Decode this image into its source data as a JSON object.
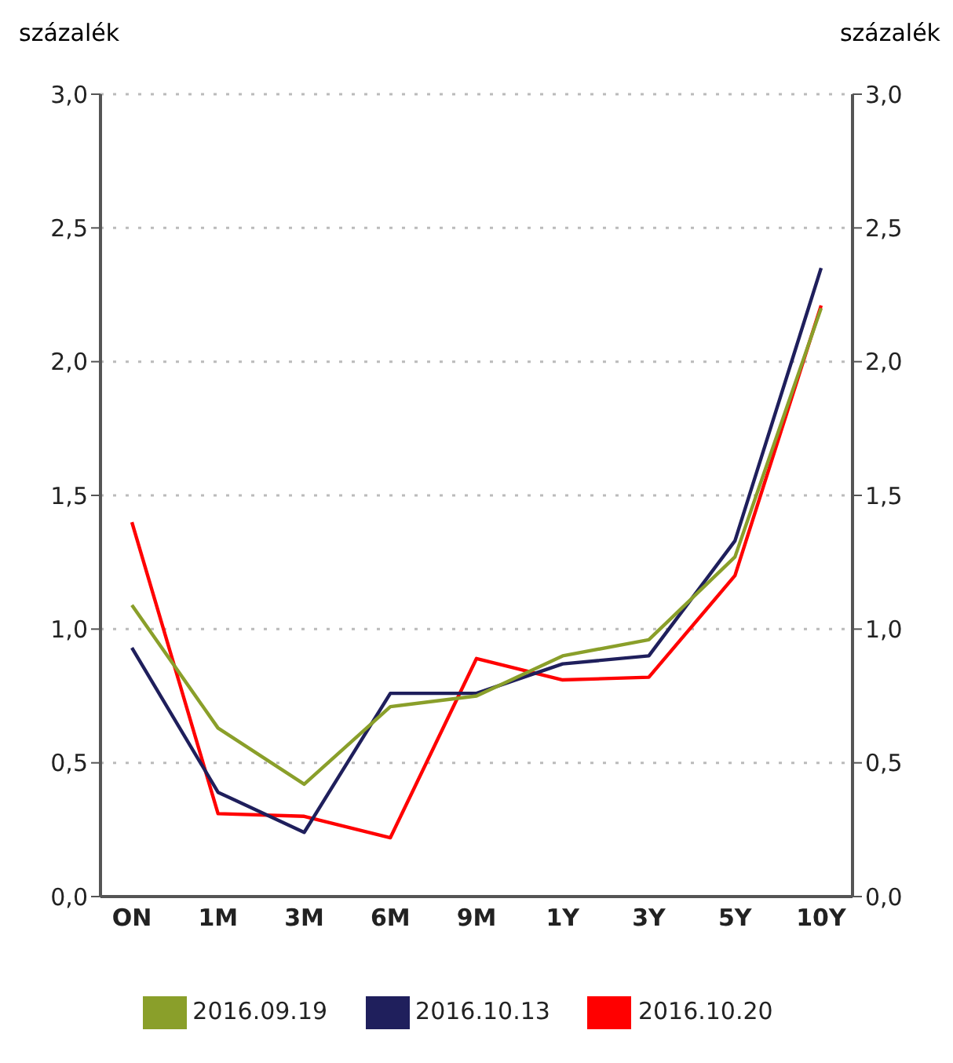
{
  "chart_data": {
    "type": "line",
    "ylabel": "százalék",
    "y2label": "százalék",
    "categories": [
      "ON",
      "1M",
      "3M",
      "6M",
      "9M",
      "1Y",
      "3Y",
      "5Y",
      "10Y"
    ],
    "series": [
      {
        "name": "2016.10.20",
        "color": "#ff0000",
        "values": [
          1.4,
          0.31,
          0.3,
          0.22,
          0.89,
          0.81,
          0.82,
          1.2,
          2.21
        ]
      },
      {
        "name": "2016.10.13",
        "color": "#1f1f5c",
        "values": [
          0.93,
          0.39,
          0.24,
          0.76,
          0.76,
          0.87,
          0.9,
          1.33,
          2.35
        ]
      },
      {
        "name": "2016.09.19",
        "color": "#8a9f2a",
        "values": [
          1.09,
          0.63,
          0.42,
          0.71,
          0.75,
          0.9,
          0.96,
          1.27,
          2.2
        ]
      }
    ],
    "ylim": [
      0,
      3
    ],
    "yticks": [
      {
        "value": 0,
        "label": "0,0"
      },
      {
        "value": 0.5,
        "label": "0,5"
      },
      {
        "value": 1,
        "label": "1,0"
      },
      {
        "value": 1.5,
        "label": "1,5"
      },
      {
        "value": 2,
        "label": "2,0"
      },
      {
        "value": 2.5,
        "label": "2,5"
      },
      {
        "value": 3,
        "label": "3,0"
      }
    ],
    "y2lim": [
      0,
      3
    ],
    "y2ticks": [
      {
        "value": 0,
        "label": "0,0"
      },
      {
        "value": 0.5,
        "label": "0,5"
      },
      {
        "value": 1,
        "label": "1,0"
      },
      {
        "value": 1.5,
        "label": "1,5"
      },
      {
        "value": 2,
        "label": "2,0"
      },
      {
        "value": 2.5,
        "label": "2,5"
      },
      {
        "value": 3,
        "label": "3,0"
      }
    ],
    "grid": "y",
    "legend": "bottom",
    "marker": "none",
    "line_style": "solid"
  }
}
